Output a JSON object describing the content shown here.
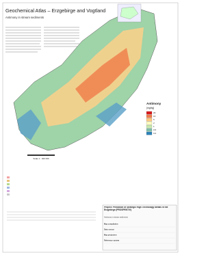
{
  "header": {
    "title": "Geochemical Atlas – Erzgebirge and Vogtland",
    "subtitle": "Antimony in stream sediments"
  },
  "scale": "Scale 1 : 400 000",
  "legend": {
    "title": "Antimony",
    "unit": "[mg/kg]",
    "classes": [
      {
        "label": "20",
        "color": "#d7191c"
      },
      {
        "label": "10",
        "color": "#f07c4a"
      },
      {
        "label": "5",
        "color": "#fec980"
      },
      {
        "label": "2",
        "color": "#ffffbf"
      },
      {
        "label": "1",
        "color": "#c7e9ad"
      },
      {
        "label": "0.5",
        "color": "#80bfab"
      },
      {
        "label": "0.2",
        "color": "#2b83ba"
      }
    ]
  },
  "info": {
    "project": "Project: Prediction of Strategic High Technology Metals in the Erzgebirge (PROSPEKTIV)",
    "map": "Antimony in stream sediments",
    "rows": [
      "Map compilation",
      "Data source",
      "Map projection",
      "Reference system"
    ]
  }
}
